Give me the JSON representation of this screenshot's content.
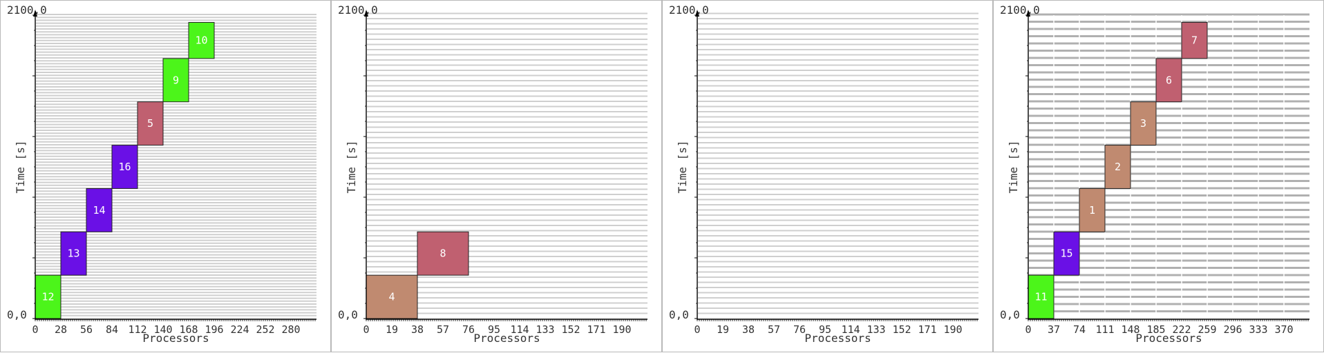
{
  "colors": {
    "green": "#4cf51a",
    "purple": "#6a10e6",
    "rose": "#c06070",
    "tan": "#c08a70",
    "grid": "#cfcfcf",
    "grid_dark": "#b0b0b0"
  },
  "chart_data": [
    {
      "type": "gantt",
      "xlabel": "Processors",
      "ylabel": "Time [s]",
      "y_top_label": "2100,0",
      "y_bottom_label": "0,0",
      "xlim": [
        0,
        308
      ],
      "ylim": [
        0,
        2100
      ],
      "x_ticks": [
        "0",
        "28",
        "56",
        "84",
        "112",
        "140",
        "168",
        "196",
        "224",
        "252",
        "280"
      ],
      "x_tick_values": [
        0,
        28,
        56,
        84,
        112,
        140,
        168,
        196,
        224,
        252,
        280
      ],
      "grid": "dense",
      "jobs": [
        {
          "id": "12",
          "proc_start": 0,
          "proc_end": 28,
          "t_start": 0,
          "t_end": 300,
          "color": "green"
        },
        {
          "id": "13",
          "proc_start": 28,
          "proc_end": 56,
          "t_start": 300,
          "t_end": 600,
          "color": "purple"
        },
        {
          "id": "14",
          "proc_start": 56,
          "proc_end": 84,
          "t_start": 600,
          "t_end": 900,
          "color": "purple"
        },
        {
          "id": "16",
          "proc_start": 84,
          "proc_end": 112,
          "t_start": 900,
          "t_end": 1200,
          "color": "purple"
        },
        {
          "id": "5",
          "proc_start": 112,
          "proc_end": 140,
          "t_start": 1200,
          "t_end": 1500,
          "color": "rose"
        },
        {
          "id": "9",
          "proc_start": 140,
          "proc_end": 168,
          "t_start": 1500,
          "t_end": 1800,
          "color": "green"
        },
        {
          "id": "10",
          "proc_start": 168,
          "proc_end": 196,
          "t_start": 1800,
          "t_end": 2050,
          "color": "green"
        }
      ]
    },
    {
      "type": "gantt",
      "xlabel": "Processors",
      "ylabel": "Time [s]",
      "y_top_label": "2100,0",
      "y_bottom_label": "0,0",
      "xlim": [
        0,
        209
      ],
      "ylim": [
        0,
        2100
      ],
      "x_ticks": [
        "0",
        "19",
        "38",
        "57",
        "76",
        "95",
        "114",
        "133",
        "152",
        "171",
        "190"
      ],
      "x_tick_values": [
        0,
        19,
        38,
        57,
        76,
        95,
        114,
        133,
        152,
        171,
        190
      ],
      "grid": "medium",
      "jobs": [
        {
          "id": "4",
          "proc_start": 0,
          "proc_end": 38,
          "t_start": 0,
          "t_end": 300,
          "color": "tan"
        },
        {
          "id": "8",
          "proc_start": 38,
          "proc_end": 76,
          "t_start": 300,
          "t_end": 600,
          "color": "rose"
        }
      ]
    },
    {
      "type": "gantt",
      "xlabel": "Processors",
      "ylabel": "Time [s]",
      "y_top_label": "2100,0",
      "y_bottom_label": "0,0",
      "xlim": [
        0,
        209
      ],
      "ylim": [
        0,
        2100
      ],
      "x_ticks": [
        "0",
        "19",
        "38",
        "57",
        "76",
        "95",
        "114",
        "133",
        "152",
        "171",
        "190"
      ],
      "x_tick_values": [
        0,
        19,
        38,
        57,
        76,
        95,
        114,
        133,
        152,
        171,
        190
      ],
      "grid": "medium",
      "jobs": []
    },
    {
      "type": "gantt",
      "xlabel": "Processors",
      "ylabel": "Time [s]",
      "y_top_label": "2100,0",
      "y_bottom_label": "0,0",
      "xlim": [
        0,
        407
      ],
      "ylim": [
        0,
        2100
      ],
      "x_ticks": [
        "0",
        "37",
        "74",
        "111",
        "148",
        "185",
        "222",
        "259",
        "296",
        "333",
        "370"
      ],
      "x_tick_values": [
        0,
        37,
        74,
        111,
        148,
        185,
        222,
        259,
        296,
        333,
        370
      ],
      "grid": "coarse",
      "jobs": [
        {
          "id": "11",
          "proc_start": 0,
          "proc_end": 37,
          "t_start": 0,
          "t_end": 300,
          "color": "green"
        },
        {
          "id": "15",
          "proc_start": 37,
          "proc_end": 74,
          "t_start": 300,
          "t_end": 600,
          "color": "purple"
        },
        {
          "id": "1",
          "proc_start": 74,
          "proc_end": 111,
          "t_start": 600,
          "t_end": 900,
          "color": "tan"
        },
        {
          "id": "2",
          "proc_start": 111,
          "proc_end": 148,
          "t_start": 900,
          "t_end": 1200,
          "color": "tan"
        },
        {
          "id": "3",
          "proc_start": 148,
          "proc_end": 185,
          "t_start": 1200,
          "t_end": 1500,
          "color": "tan"
        },
        {
          "id": "6",
          "proc_start": 185,
          "proc_end": 222,
          "t_start": 1500,
          "t_end": 1800,
          "color": "rose"
        },
        {
          "id": "7",
          "proc_start": 222,
          "proc_end": 259,
          "t_start": 1800,
          "t_end": 2050,
          "color": "rose"
        }
      ]
    }
  ]
}
